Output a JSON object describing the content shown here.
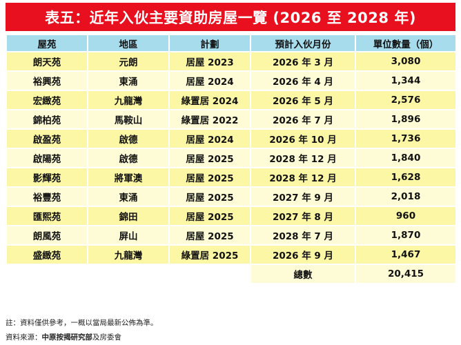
{
  "title": "表五：近年入伙主要資助房屋一覽 (2026 至 2028 年)",
  "headers": [
    "屋苑",
    "地區",
    "計劃",
    "預計入伙月份",
    "單位數量（個）"
  ],
  "rows": [
    [
      "朗天苑",
      "元朗",
      "居屋 2023",
      "2026 年 3 月",
      "3,080"
    ],
    [
      "裕興苑",
      "東涌",
      "居屋 2024",
      "2026 年 4 月",
      "1,344"
    ],
    [
      "宏緻苑",
      "九龍灣",
      "綠置居 2024",
      "2026 年 5 月",
      "2,576"
    ],
    [
      "錦柏苑",
      "馬鞍山",
      "綠置居 2022",
      "2026 年 7 月",
      "1,896"
    ],
    [
      "啟盈苑",
      "啟德",
      "居屋 2024",
      "2026 年 10 月",
      "1,736"
    ],
    [
      "啟陽苑",
      "啟德",
      "居屋 2025",
      "2028 年 12 月",
      "1,840"
    ],
    [
      "影輝苑",
      "將軍澳",
      "居屋 2025",
      "2028 年 12 月",
      "1,628"
    ],
    [
      "裕豐苑",
      "東涌",
      "居屋 2025",
      "2027 年 9 月",
      "2,018"
    ],
    [
      "匯熙苑",
      "錦田",
      "居屋 2025",
      "2027 年 8 月",
      "960"
    ],
    [
      "朗風苑",
      "屏山",
      "居屋 2025",
      "2028 年 7 月",
      "1,870"
    ],
    [
      "盛緻苑",
      "九龍灣",
      "綠置居 2025",
      "2026 年 9 月",
      "1,467"
    ]
  ],
  "total": {
    "label": "總數",
    "value": "20,415"
  },
  "notes": {
    "note": "註：資料僅供參考，一概以當局最新公佈為準。",
    "source_prefix": "資料來源：",
    "source_bold": "中原按揭研究部",
    "source_suffix": "及房委會"
  },
  "colors": {
    "title_bg": "#e8101e",
    "header_bg": "#a7dced",
    "row_odd_bg": "#fbf7a4",
    "row_even_bg": "#fdfcd6"
  }
}
